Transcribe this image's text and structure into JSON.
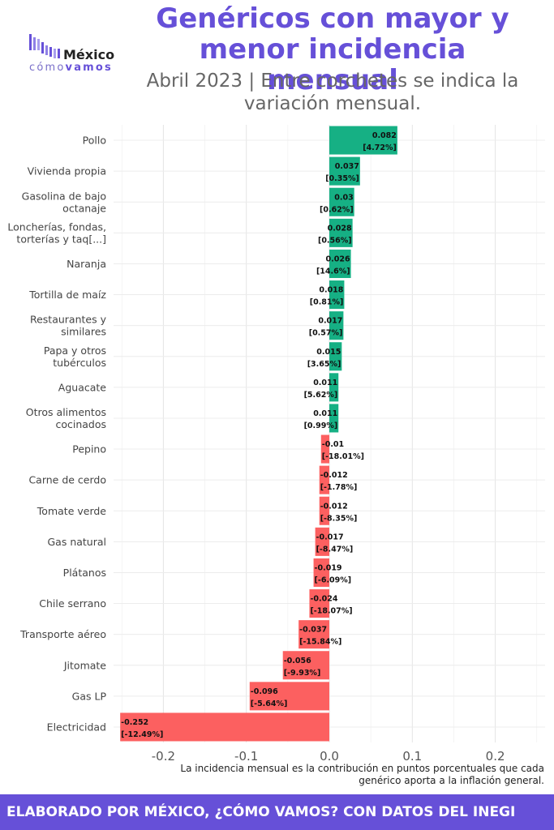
{
  "header": {
    "title": "Genéricos con mayor y menor incidencia mensual",
    "subtitle": "Abril 2023 | Entre corchetes se indica la variación mensual.",
    "logo_top": "México",
    "logo_bottom_a": "cómo",
    "logo_bottom_b": "vamos"
  },
  "note": "La incidencia mensual es la contribución en puntos porcentuales que cada genérico aporta a la inflación general.",
  "footer": "ELABORADO POR MÉXICO, ¿CÓMO VAMOS? CON DATOS DEL INEGI",
  "colors": {
    "positive": "#16b084",
    "negative": "#fc6060",
    "brand": "#6650d8"
  },
  "chart_data": {
    "type": "bar",
    "orientation": "horizontal",
    "xlim": [
      -0.26,
      0.26
    ],
    "xticks": [
      "-0.2",
      "-0.1",
      "0.0",
      "0.1",
      "0.2"
    ],
    "xtick_values": [
      -0.2,
      -0.1,
      0.0,
      0.1,
      0.2
    ],
    "grid": true,
    "categories": [
      [
        "Pollo"
      ],
      [
        "Vivienda propia"
      ],
      [
        "Gasolina de bajo",
        "octanaje"
      ],
      [
        "Loncherías, fondas,",
        "torterías y taq[...]"
      ],
      [
        "Naranja"
      ],
      [
        "Tortilla de maíz"
      ],
      [
        "Restaurantes y",
        "similares"
      ],
      [
        "Papa y otros",
        "tubérculos"
      ],
      [
        "Aguacate"
      ],
      [
        "Otros alimentos",
        "cocinados"
      ],
      [
        "Pepino"
      ],
      [
        "Carne de cerdo"
      ],
      [
        "Tomate verde"
      ],
      [
        "Gas natural"
      ],
      [
        "Plátanos"
      ],
      [
        "Chile serrano"
      ],
      [
        "Transporte aéreo"
      ],
      [
        "Jitomate"
      ],
      [
        "Gas LP"
      ],
      [
        "Electricidad"
      ]
    ],
    "values": [
      0.082,
      0.037,
      0.03,
      0.028,
      0.026,
      0.018,
      0.017,
      0.015,
      0.011,
      0.011,
      -0.01,
      -0.012,
      -0.012,
      -0.017,
      -0.019,
      -0.024,
      -0.037,
      -0.056,
      -0.096,
      -0.252
    ],
    "value_labels": [
      "0.082",
      "0.037",
      "0.03",
      "0.028",
      "0.026",
      "0.018",
      "0.017",
      "0.015",
      "0.011",
      "0.011",
      "-0.01",
      "-0.012",
      "-0.012",
      "-0.017",
      "-0.019",
      "-0.024",
      "-0.037",
      "-0.056",
      "-0.096",
      "-0.252"
    ],
    "variation_labels": [
      "[4.72%]",
      "[0.35%]",
      "[0.62%]",
      "[0.56%]",
      "[14.6%]",
      "[0.81%]",
      "[0.57%]",
      "[3.65%]",
      "[5.62%]",
      "[0.99%]",
      "[-18.01%]",
      "[-1.78%]",
      "[-8.35%]",
      "[-8.47%]",
      "[-6.09%]",
      "[-18.07%]",
      "[-15.84%]",
      "[-9.93%]",
      "[-5.64%]",
      "[-12.49%]"
    ]
  }
}
